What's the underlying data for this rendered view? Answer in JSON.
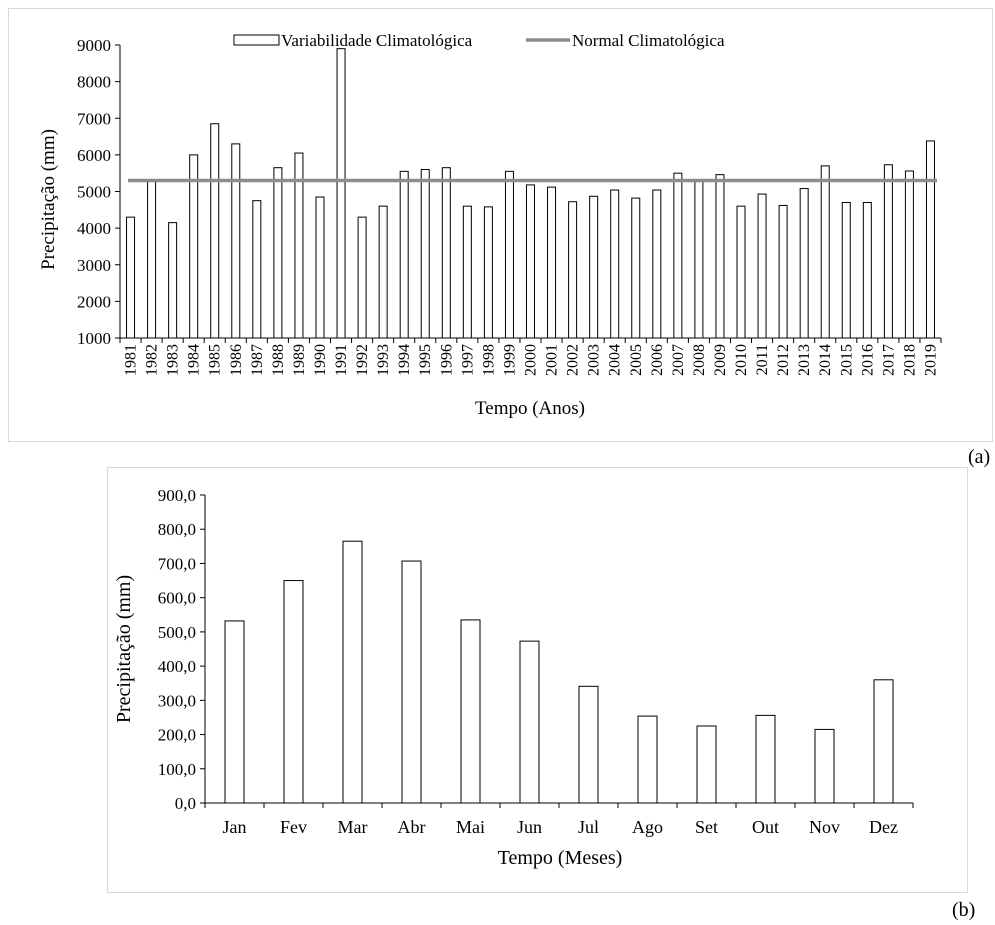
{
  "chart_data": [
    {
      "type": "bar",
      "panel_label": "(a)",
      "xlabel": "Tempo (Anos)",
      "ylabel": "Precipitação (mm)",
      "ylim": [
        1000,
        9000
      ],
      "yticks": [
        "1000",
        "2000",
        "3000",
        "4000",
        "5000",
        "6000",
        "7000",
        "8000",
        "9000"
      ],
      "legend_position": "top-center",
      "categories": [
        "1981",
        "1982",
        "1983",
        "1984",
        "1985",
        "1986",
        "1987",
        "1988",
        "1989",
        "1990",
        "1991",
        "1992",
        "1993",
        "1994",
        "1995",
        "1996",
        "1997",
        "1998",
        "1999",
        "2000",
        "2001",
        "2002",
        "2003",
        "2004",
        "2005",
        "2006",
        "2007",
        "2008",
        "2009",
        "2010",
        "2011",
        "2012",
        "2013",
        "2014",
        "2015",
        "2016",
        "2017",
        "2018",
        "2019"
      ],
      "series": [
        {
          "name": "Variabilidade Climatológica",
          "kind": "bar",
          "values": [
            4300,
            5300,
            4150,
            6000,
            6850,
            6300,
            4750,
            5650,
            6050,
            4850,
            8900,
            4300,
            4600,
            5550,
            5600,
            5650,
            4600,
            4580,
            5550,
            5180,
            5120,
            4720,
            4870,
            5040,
            4820,
            5040,
            5500,
            5280,
            5460,
            4600,
            4930,
            4620,
            5080,
            5700,
            4700,
            4700,
            5730,
            5560,
            6380
          ]
        },
        {
          "name": "Normal Climatológica",
          "kind": "line",
          "value": 5300,
          "color": "#8c8c8c"
        }
      ],
      "grid": false
    },
    {
      "type": "bar",
      "panel_label": "(b)",
      "xlabel": "Tempo (Meses)",
      "ylabel": "Precipitação (mm)",
      "ylim": [
        0,
        900
      ],
      "yticks": [
        "0,0",
        "100,0",
        "200,0",
        "300,0",
        "400,0",
        "500,0",
        "600,0",
        "700,0",
        "800,0",
        "900,0"
      ],
      "categories": [
        "Jan",
        "Fev",
        "Mar",
        "Abr",
        "Mai",
        "Jun",
        "Jul",
        "Ago",
        "Set",
        "Out",
        "Nov",
        "Dez"
      ],
      "values": [
        532,
        650,
        765,
        707,
        535,
        473,
        341,
        254,
        225,
        256,
        215,
        360
      ],
      "grid": false
    }
  ]
}
